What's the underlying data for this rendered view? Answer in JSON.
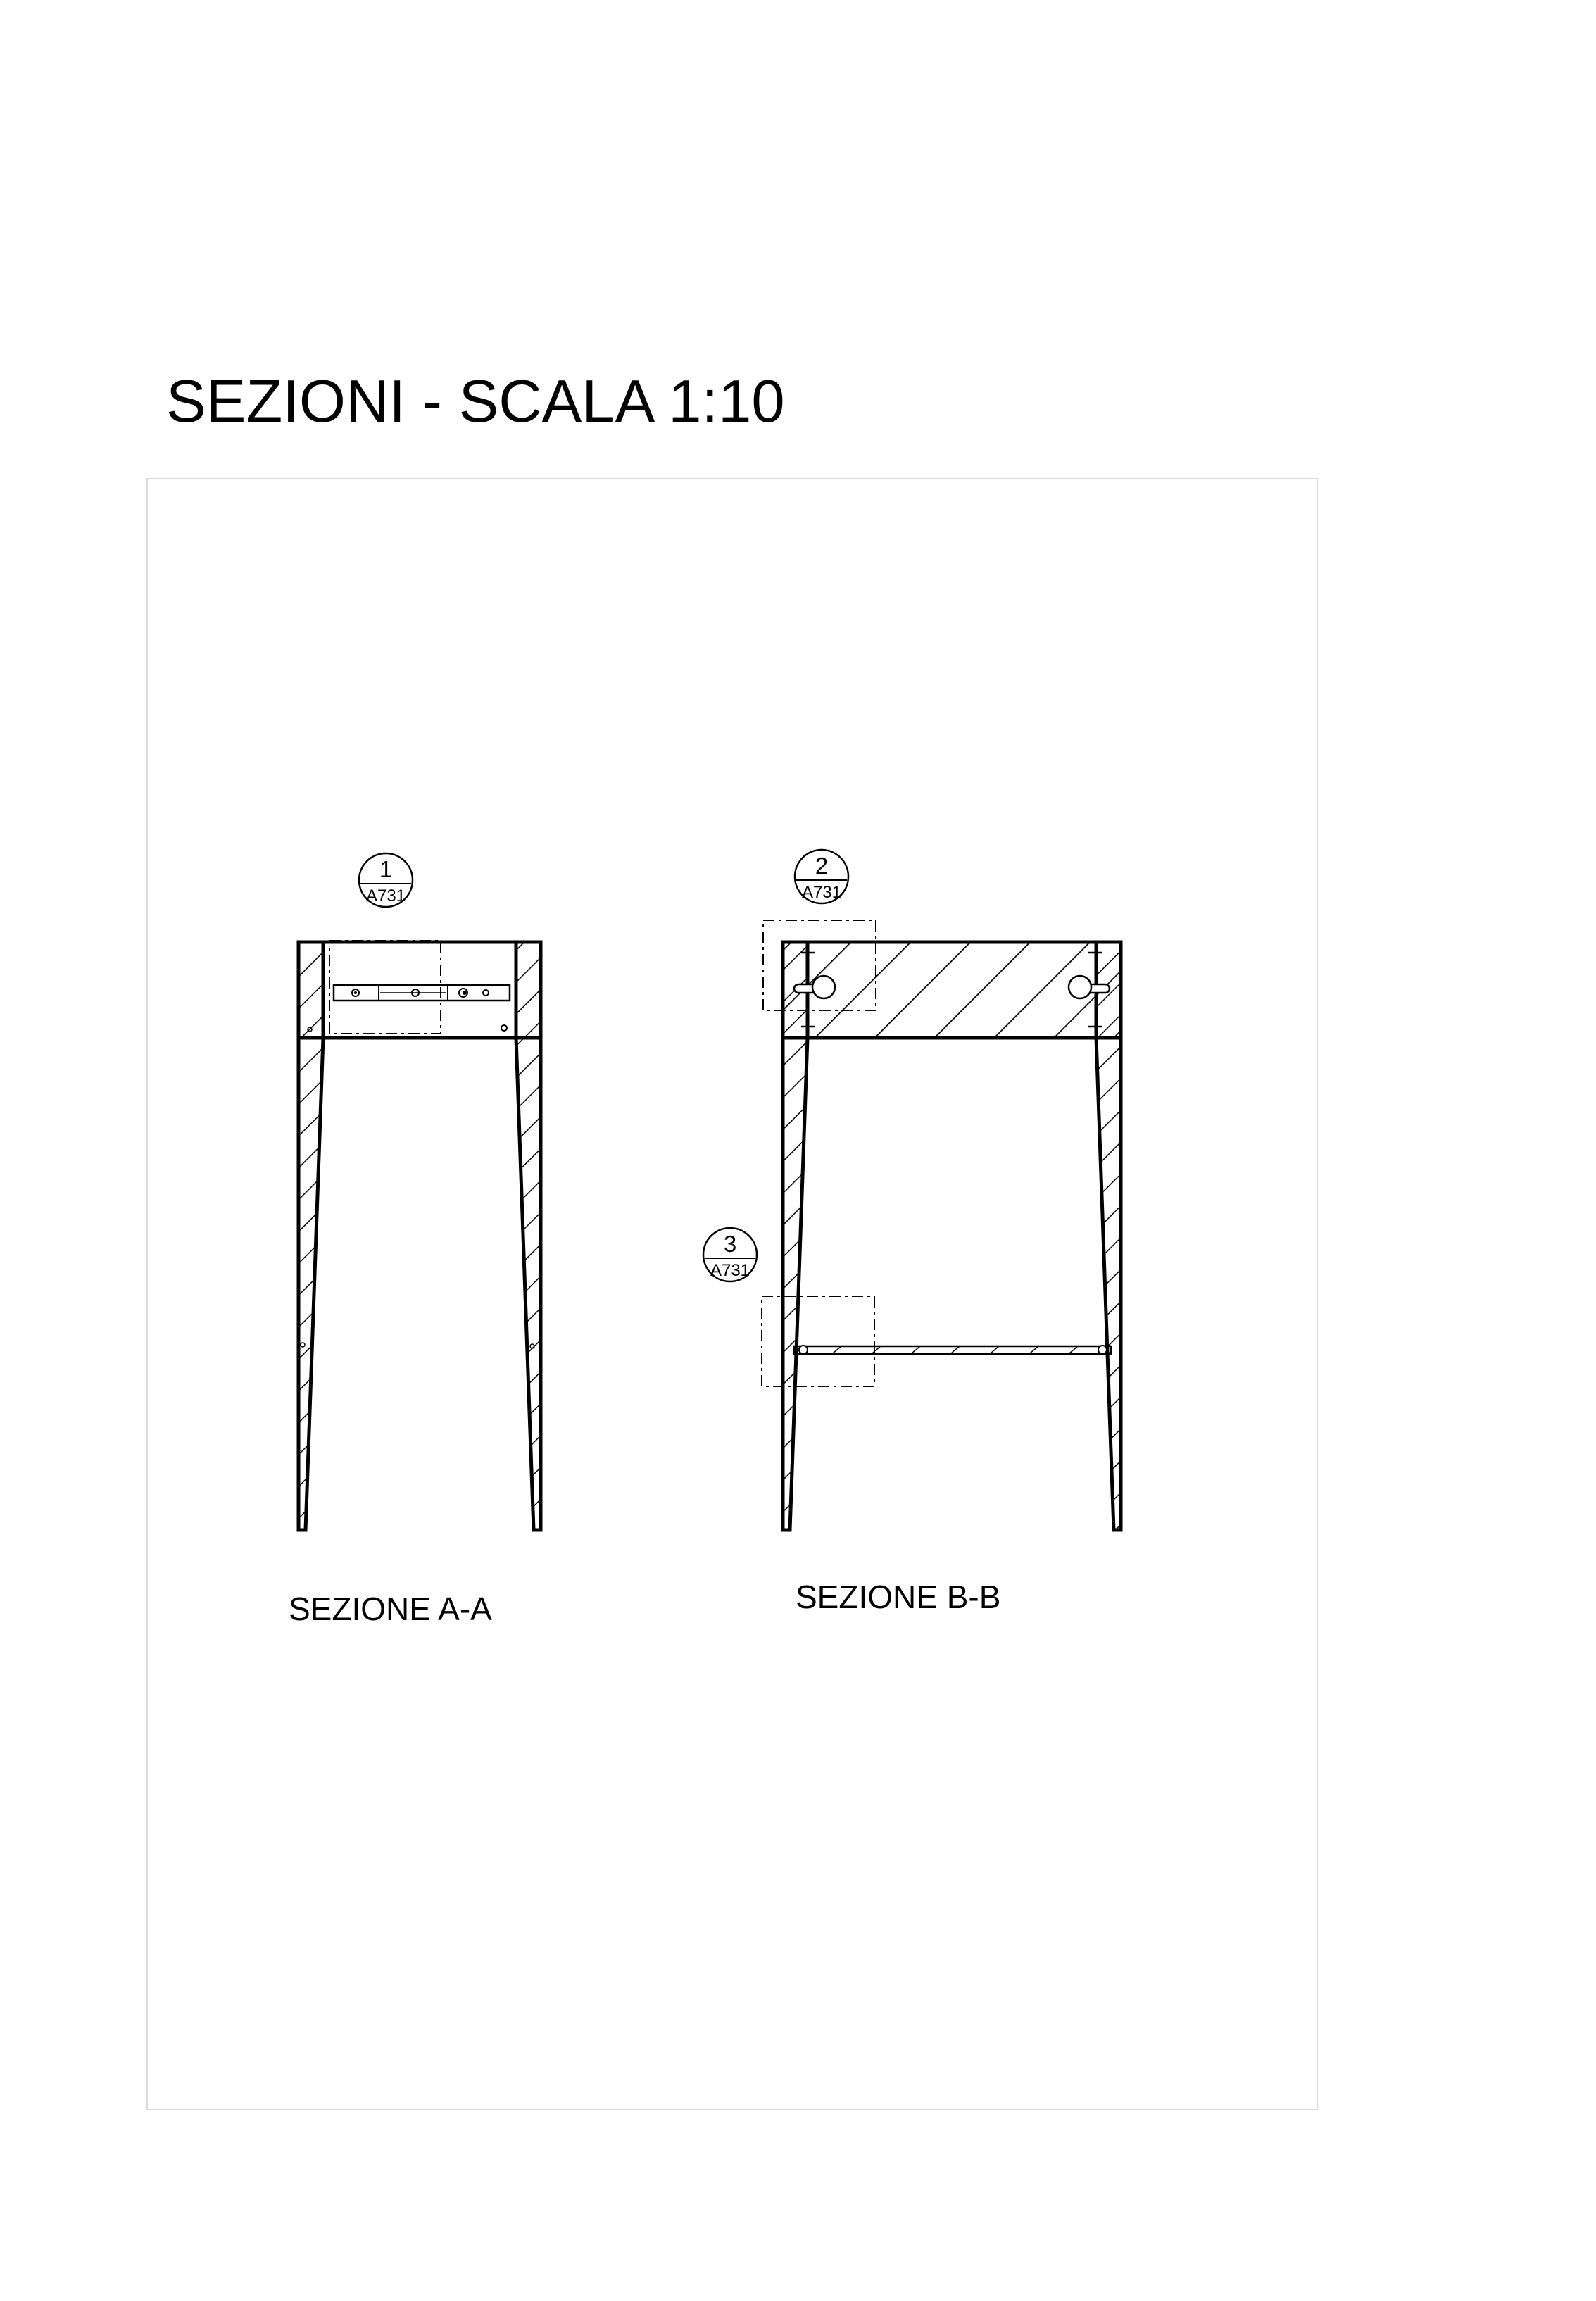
{
  "title": "SEZIONI - SCALA 1:10",
  "sections": [
    {
      "caption": "SEZIONE A-A"
    },
    {
      "caption": "SEZIONE B-B"
    }
  ],
  "callouts": [
    {
      "number": "1",
      "sheet": "A731"
    },
    {
      "number": "2",
      "sheet": "A731"
    },
    {
      "number": "3",
      "sheet": "A731"
    }
  ]
}
